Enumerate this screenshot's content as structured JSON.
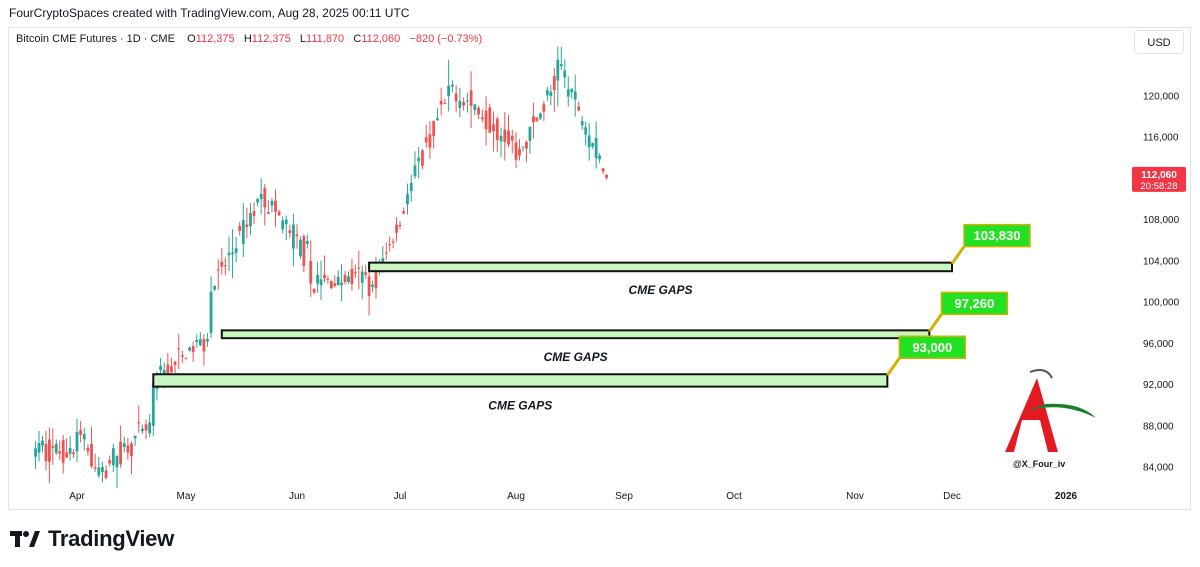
{
  "credit": "FourCryptoSpaces created with TradingView.com, Aug 28, 2025 00:11 UTC",
  "legend": {
    "symbol": "Bitcoin CME Futures · 1D · CME",
    "o_label": "O",
    "o": "112,375",
    "h_label": "H",
    "h": "112,375",
    "l_label": "L",
    "l": "111,870",
    "c_label": "C",
    "c": "112,060",
    "change": "−820 (−0.73%)"
  },
  "currency_button": "USD",
  "price_tag": {
    "price": "112,060",
    "countdown": "20:58:28",
    "color": "#f23645"
  },
  "watermark_handle": "@X_Four_iv",
  "brand": "TradingView",
  "colors": {
    "up": "#26a69a",
    "down": "#ef5350",
    "gap_fill": "#c8f5c0",
    "callout": "#22e122",
    "callout_border": "#d4b000"
  },
  "chart_data": {
    "type": "candlestick",
    "title": "Bitcoin CME Futures · 1D · CME",
    "x_ticks": [
      "Apr",
      "May",
      "Jun",
      "Jul",
      "Aug",
      "Sep",
      "Oct",
      "Nov",
      "Dec",
      "2026"
    ],
    "y_ticks": [
      "84,000",
      "88,000",
      "92,000",
      "96,000",
      "100,000",
      "104,000",
      "108,000",
      "116,000",
      "120,000"
    ],
    "ylim": [
      82000,
      125500
    ],
    "last_price": 112060,
    "ohlc_series_sample": [
      {
        "date": "2025-03-20",
        "o": 85000,
        "h": 86500,
        "l": 83800,
        "c": 85800
      },
      {
        "date": "2025-04-01",
        "o": 85500,
        "h": 88700,
        "l": 84500,
        "c": 87400
      },
      {
        "date": "2025-04-08",
        "o": 83500,
        "h": 84500,
        "l": 82500,
        "c": 84000
      },
      {
        "date": "2025-04-22",
        "o": 88000,
        "h": 92500,
        "l": 87000,
        "c": 92200
      },
      {
        "date": "2025-05-08",
        "o": 97000,
        "h": 102500,
        "l": 96500,
        "c": 101000
      },
      {
        "date": "2025-05-22",
        "o": 110000,
        "h": 112000,
        "l": 108500,
        "c": 110500
      },
      {
        "date": "2025-06-05",
        "o": 104000,
        "h": 106000,
        "l": 100500,
        "c": 101800
      },
      {
        "date": "2025-06-22",
        "o": 102500,
        "h": 103500,
        "l": 98700,
        "c": 100600
      },
      {
        "date": "2025-07-03",
        "o": 109500,
        "h": 111500,
        "l": 108500,
        "c": 110500
      },
      {
        "date": "2025-07-14",
        "o": 120000,
        "h": 123500,
        "l": 118500,
        "c": 121000
      },
      {
        "date": "2025-08-01",
        "o": 115500,
        "h": 116500,
        "l": 113000,
        "c": 113800
      },
      {
        "date": "2025-08-13",
        "o": 121500,
        "h": 124800,
        "l": 119000,
        "c": 123500
      },
      {
        "date": "2025-08-27",
        "o": 112375,
        "h": 112375,
        "l": 111870,
        "c": 112060
      }
    ],
    "gaps": [
      {
        "label": "CME GAPS",
        "value": "103,830",
        "top": 103830,
        "bottom": 103000,
        "start": "2025-06-22",
        "end": "2025-12-01"
      },
      {
        "label": "CME GAPS",
        "value": "97,260",
        "top": 97260,
        "bottom": 96500,
        "start": "2025-05-11",
        "end": "2025-11-24"
      },
      {
        "label": "CME GAPS",
        "value": "93,000",
        "top": 93000,
        "bottom": 91800,
        "start": "2025-04-22",
        "end": "2025-11-11"
      }
    ]
  }
}
